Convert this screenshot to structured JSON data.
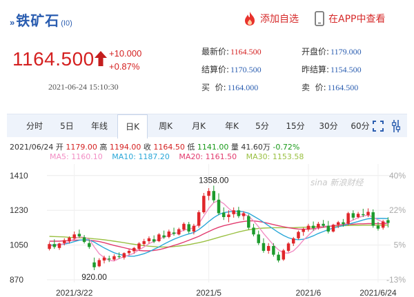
{
  "header": {
    "arrows": "»",
    "name": "铁矿石",
    "code": "(I0)",
    "add_watchlist": "添加自选",
    "view_in_app": "在APP中查看"
  },
  "quote": {
    "price": "1164.500",
    "change": "+10.000",
    "change_pct": "+0.87%",
    "time": "2021-06-24 15:10:30",
    "fields": {
      "latest_label": "最新价:",
      "latest": "1164.500",
      "settle_label": "结算价:",
      "settle": "1170.500",
      "bid_label": "买  价:",
      "bid": "1164.000",
      "open_label": "开盘价:",
      "open": "1179.000",
      "prev_settle_label": "昨结算:",
      "prev_settle": "1154.500",
      "ask_label": "卖  价:",
      "ask": "1164.500"
    }
  },
  "tabs": [
    "分时",
    "5日",
    "年线",
    "日K",
    "周K",
    "月K",
    "年K",
    "5分",
    "15分",
    "30分",
    "60分"
  ],
  "active_tab": "日K",
  "ohlc_line": {
    "date": "2021/06/24",
    "open_label": "开",
    "open": "1179.00",
    "high_label": "高",
    "high": "1194.00",
    "close_label": "收",
    "close": "1164.50",
    "low_label": "低",
    "low": "1141.00",
    "vol_label": "量",
    "vol": "41.60万",
    "pct": "-0.72%"
  },
  "ma_line": {
    "ma5": "MA5: 1160.10",
    "ma10": "MA10: 1187.20",
    "ma20": "MA20: 1161.50",
    "ma30": "MA30: 1153.58"
  },
  "watermark": "sina 新浪财经",
  "colors": {
    "up": "#e0262a",
    "down": "#1d9b2d",
    "ma5": "#f28ec4",
    "ma10": "#29a7d8",
    "ma20": "#e23a6e",
    "ma30": "#9ac042"
  },
  "chart_data": {
    "type": "candlestick",
    "ylim": [
      870,
      1470
    ],
    "y_ticks": [
      "1410",
      "1230",
      "1050",
      "870"
    ],
    "pct_ticks": [
      "40%",
      "22%",
      "5%",
      "-13%"
    ],
    "x_ticks": [
      {
        "label": "2021/3/22",
        "index": 5
      },
      {
        "label": "2021/5",
        "index": 32
      },
      {
        "label": "2021/6",
        "index": 52
      },
      {
        "label": "2021/6/24",
        "index": 66
      }
    ],
    "annotations": [
      {
        "text": "1358.00",
        "index": 33,
        "value": 1358
      },
      {
        "text": "920.00",
        "index": 9,
        "value": 920
      }
    ],
    "candles": [
      {
        "o": 1030,
        "h": 1065,
        "l": 1022,
        "c": 1055
      },
      {
        "o": 1055,
        "h": 1080,
        "l": 1030,
        "c": 1040
      },
      {
        "o": 1035,
        "h": 1062,
        "l": 1025,
        "c": 1058
      },
      {
        "o": 1060,
        "h": 1085,
        "l": 1048,
        "c": 1075
      },
      {
        "o": 1070,
        "h": 1095,
        "l": 1058,
        "c": 1088
      },
      {
        "o": 1085,
        "h": 1120,
        "l": 1078,
        "c": 1105
      },
      {
        "o": 1108,
        "h": 1130,
        "l": 1088,
        "c": 1095
      },
      {
        "o": 1090,
        "h": 1102,
        "l": 1058,
        "c": 1066
      },
      {
        "o": 1060,
        "h": 1078,
        "l": 1030,
        "c": 1040
      },
      {
        "o": 960,
        "h": 985,
        "l": 920,
        "c": 935
      },
      {
        "o": 940,
        "h": 982,
        "l": 935,
        "c": 972
      },
      {
        "o": 970,
        "h": 995,
        "l": 955,
        "c": 985
      },
      {
        "o": 980,
        "h": 995,
        "l": 962,
        "c": 975
      },
      {
        "o": 975,
        "h": 1002,
        "l": 968,
        "c": 992
      },
      {
        "o": 992,
        "h": 1012,
        "l": 980,
        "c": 988
      },
      {
        "o": 985,
        "h": 1012,
        "l": 975,
        "c": 1008
      },
      {
        "o": 1008,
        "h": 1030,
        "l": 998,
        "c": 1020
      },
      {
        "o": 1018,
        "h": 1040,
        "l": 1005,
        "c": 1035
      },
      {
        "o": 1030,
        "h": 1065,
        "l": 1022,
        "c": 1058
      },
      {
        "o": 1055,
        "h": 1082,
        "l": 1045,
        "c": 1070
      },
      {
        "o": 1070,
        "h": 1095,
        "l": 1058,
        "c": 1085
      },
      {
        "o": 1080,
        "h": 1100,
        "l": 1060,
        "c": 1068
      },
      {
        "o": 1070,
        "h": 1112,
        "l": 1065,
        "c": 1105
      },
      {
        "o": 1100,
        "h": 1125,
        "l": 1082,
        "c": 1090
      },
      {
        "o": 1092,
        "h": 1130,
        "l": 1085,
        "c": 1120
      },
      {
        "o": 1115,
        "h": 1140,
        "l": 1098,
        "c": 1108
      },
      {
        "o": 1105,
        "h": 1140,
        "l": 1100,
        "c": 1132
      },
      {
        "o": 1130,
        "h": 1168,
        "l": 1122,
        "c": 1160
      },
      {
        "o": 1158,
        "h": 1170,
        "l": 1110,
        "c": 1120
      },
      {
        "o": 1120,
        "h": 1160,
        "l": 1105,
        "c": 1150
      },
      {
        "o": 1150,
        "h": 1230,
        "l": 1140,
        "c": 1220
      },
      {
        "o": 1220,
        "h": 1320,
        "l": 1212,
        "c": 1305
      },
      {
        "o": 1305,
        "h": 1345,
        "l": 1282,
        "c": 1330
      },
      {
        "o": 1330,
        "h": 1358,
        "l": 1270,
        "c": 1282
      },
      {
        "o": 1285,
        "h": 1318,
        "l": 1205,
        "c": 1215
      },
      {
        "o": 1218,
        "h": 1245,
        "l": 1180,
        "c": 1195
      },
      {
        "o": 1195,
        "h": 1230,
        "l": 1168,
        "c": 1208
      },
      {
        "o": 1210,
        "h": 1245,
        "l": 1192,
        "c": 1230
      },
      {
        "o": 1230,
        "h": 1248,
        "l": 1190,
        "c": 1200
      },
      {
        "o": 1200,
        "h": 1225,
        "l": 1180,
        "c": 1215
      },
      {
        "o": 1200,
        "h": 1210,
        "l": 1130,
        "c": 1140
      },
      {
        "o": 1140,
        "h": 1160,
        "l": 1095,
        "c": 1105
      },
      {
        "o": 1105,
        "h": 1125,
        "l": 1050,
        "c": 1060
      },
      {
        "o": 1060,
        "h": 1085,
        "l": 1010,
        "c": 1020
      },
      {
        "o": 1020,
        "h": 1060,
        "l": 1005,
        "c": 1045
      },
      {
        "o": 1045,
        "h": 1060,
        "l": 990,
        "c": 1000
      },
      {
        "o": 1000,
        "h": 1015,
        "l": 960,
        "c": 970
      },
      {
        "o": 975,
        "h": 1030,
        "l": 968,
        "c": 1022
      },
      {
        "o": 1020,
        "h": 1065,
        "l": 1012,
        "c": 1058
      },
      {
        "o": 1058,
        "h": 1092,
        "l": 1045,
        "c": 1085
      },
      {
        "o": 1085,
        "h": 1125,
        "l": 1078,
        "c": 1118
      },
      {
        "o": 1118,
        "h": 1140,
        "l": 1098,
        "c": 1132
      },
      {
        "o": 1130,
        "h": 1160,
        "l": 1120,
        "c": 1150
      },
      {
        "o": 1150,
        "h": 1172,
        "l": 1125,
        "c": 1138
      },
      {
        "o": 1140,
        "h": 1170,
        "l": 1130,
        "c": 1160
      },
      {
        "o": 1160,
        "h": 1180,
        "l": 1140,
        "c": 1150
      },
      {
        "o": 1150,
        "h": 1175,
        "l": 1110,
        "c": 1120
      },
      {
        "o": 1120,
        "h": 1160,
        "l": 1115,
        "c": 1155
      },
      {
        "o": 1155,
        "h": 1175,
        "l": 1138,
        "c": 1168
      },
      {
        "o": 1168,
        "h": 1185,
        "l": 1145,
        "c": 1158
      },
      {
        "o": 1160,
        "h": 1222,
        "l": 1152,
        "c": 1215
      },
      {
        "o": 1215,
        "h": 1230,
        "l": 1180,
        "c": 1192
      },
      {
        "o": 1195,
        "h": 1222,
        "l": 1188,
        "c": 1212
      },
      {
        "o": 1210,
        "h": 1238,
        "l": 1195,
        "c": 1205
      },
      {
        "o": 1205,
        "h": 1240,
        "l": 1195,
        "c": 1222
      },
      {
        "o": 1220,
        "h": 1235,
        "l": 1140,
        "c": 1150
      },
      {
        "o": 1150,
        "h": 1170,
        "l": 1125,
        "c": 1135
      },
      {
        "o": 1140,
        "h": 1180,
        "l": 1130,
        "c": 1172
      },
      {
        "o": 1179,
        "h": 1194,
        "l": 1141,
        "c": 1164.5
      }
    ],
    "ma5": [
      1045,
      1048,
      1050,
      1058,
      1068,
      1082,
      1092,
      1090,
      1080,
      1040,
      1005,
      985,
      970,
      968,
      980,
      990,
      998,
      1008,
      1025,
      1040,
      1058,
      1068,
      1082,
      1090,
      1100,
      1110,
      1115,
      1128,
      1132,
      1140,
      1160,
      1200,
      1240,
      1270,
      1280,
      1265,
      1240,
      1220,
      1210,
      1210,
      1200,
      1175,
      1145,
      1110,
      1080,
      1050,
      1025,
      1010,
      1008,
      1020,
      1045,
      1075,
      1100,
      1125,
      1140,
      1148,
      1148,
      1152,
      1155,
      1158,
      1168,
      1180,
      1192,
      1200,
      1205,
      1195,
      1180,
      1170,
      1160
    ],
    "ma10": [
      1050,
      1050,
      1052,
      1055,
      1060,
      1068,
      1075,
      1078,
      1076,
      1065,
      1050,
      1035,
      1022,
      1010,
      1002,
      996,
      992,
      992,
      998,
      1005,
      1015,
      1028,
      1040,
      1055,
      1068,
      1080,
      1090,
      1100,
      1108,
      1115,
      1130,
      1150,
      1172,
      1192,
      1208,
      1218,
      1222,
      1225,
      1225,
      1222,
      1215,
      1200,
      1185,
      1168,
      1150,
      1132,
      1115,
      1100,
      1088,
      1080,
      1078,
      1080,
      1088,
      1098,
      1110,
      1120,
      1130,
      1138,
      1145,
      1150,
      1158,
      1165,
      1172,
      1180,
      1186,
      1188,
      1188,
      1188,
      1187
    ],
    "ma20": [
      1070,
      1070,
      1070,
      1072,
      1073,
      1075,
      1076,
      1076,
      1075,
      1072,
      1068,
      1062,
      1055,
      1048,
      1042,
      1036,
      1030,
      1025,
      1022,
      1020,
      1020,
      1022,
      1026,
      1032,
      1040,
      1048,
      1056,
      1065,
      1075,
      1085,
      1095,
      1108,
      1120,
      1132,
      1142,
      1150,
      1156,
      1162,
      1168,
      1172,
      1175,
      1175,
      1172,
      1168,
      1162,
      1156,
      1150,
      1145,
      1140,
      1136,
      1133,
      1132,
      1133,
      1135,
      1138,
      1142,
      1146,
      1150,
      1153,
      1155,
      1157,
      1158,
      1160,
      1160,
      1161,
      1161,
      1161,
      1161,
      1161
    ],
    "ma30": [
      1095,
      1094,
      1093,
      1092,
      1090,
      1089,
      1088,
      1087,
      1085,
      1082,
      1080,
      1077,
      1074,
      1070,
      1066,
      1062,
      1058,
      1054,
      1050,
      1047,
      1044,
      1042,
      1040,
      1040,
      1040,
      1042,
      1045,
      1048,
      1052,
      1057,
      1062,
      1068,
      1075,
      1082,
      1090,
      1097,
      1104,
      1111,
      1118,
      1124,
      1129,
      1133,
      1136,
      1138,
      1139,
      1140,
      1140,
      1140,
      1140,
      1140,
      1141,
      1142,
      1143,
      1144,
      1145,
      1146,
      1147,
      1148,
      1149,
      1150,
      1151,
      1152,
      1152,
      1153,
      1153,
      1153,
      1153,
      1153,
      1153
    ]
  }
}
